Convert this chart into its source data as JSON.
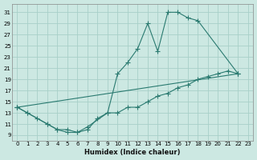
{
  "xlabel": "Humidex (Indice chaleur)",
  "bg_color": "#cce8e2",
  "grid_color": "#a8d0c8",
  "line_color": "#2a7a70",
  "xlim": [
    -0.5,
    23.5
  ],
  "ylim": [
    8.0,
    32.5
  ],
  "xticks": [
    0,
    1,
    2,
    3,
    4,
    5,
    6,
    7,
    8,
    9,
    10,
    11,
    12,
    13,
    14,
    15,
    16,
    17,
    18,
    19,
    20,
    21,
    22,
    23
  ],
  "yticks": [
    9,
    11,
    13,
    15,
    17,
    19,
    21,
    23,
    25,
    27,
    29,
    31
  ],
  "line1_x": [
    0,
    1,
    2,
    3,
    4,
    5,
    6,
    7,
    9,
    10,
    11,
    12,
    13,
    14,
    15,
    16,
    17,
    18,
    22
  ],
  "line1_y": [
    14,
    13,
    12,
    11,
    10,
    10,
    9.5,
    10.5,
    13,
    20,
    22,
    24.5,
    29,
    24,
    31,
    31,
    30,
    29.5,
    20
  ],
  "line2_x": [
    0,
    1,
    3,
    4,
    5,
    6,
    7,
    8,
    9,
    10,
    11,
    12,
    13,
    14,
    15,
    16,
    17,
    18,
    19,
    20,
    21,
    22
  ],
  "line2_y": [
    14,
    13,
    11,
    10,
    9.5,
    9.5,
    10,
    12,
    13,
    13,
    14,
    14,
    15,
    16,
    16.5,
    17.5,
    18,
    19,
    19.5,
    20,
    20.5,
    20
  ],
  "line3_x": [
    0,
    22
  ],
  "line3_y": [
    14,
    20
  ]
}
